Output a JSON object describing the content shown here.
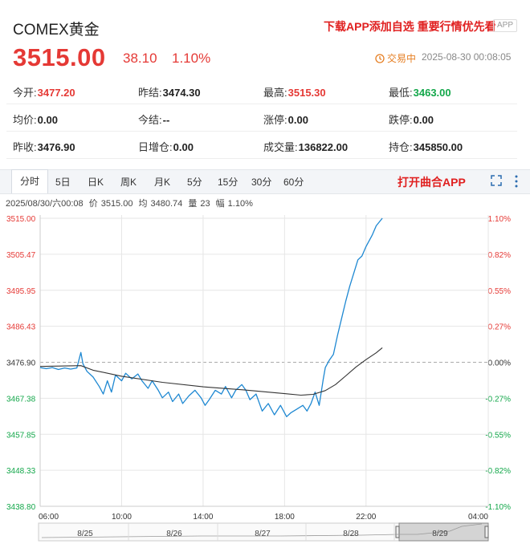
{
  "header": {
    "title": "COMEX黄金",
    "promo": "下载APP添加自选 重要行情优先看",
    "app_badge": "APP",
    "price": "3515.00",
    "change": "38.10",
    "change_pct": "1.10%",
    "status": "交易中",
    "timestamp": "2025-08-30 00:08:05"
  },
  "stats": {
    "open_label": "今开:",
    "open_value": "3477.20",
    "prev_settle_label": "昨结:",
    "prev_settle_value": "3474.30",
    "high_label": "最高:",
    "high_value": "3515.30",
    "low_label": "最低:",
    "low_value": "3463.00",
    "avg_label": "均价:",
    "avg_value": "0.00",
    "settle_label": "今结:",
    "settle_value": "--",
    "limit_up_label": "涨停:",
    "limit_up_value": "0.00",
    "limit_down_label": "跌停:",
    "limit_down_value": "0.00",
    "prev_close_label": "昨收:",
    "prev_close_value": "3476.90",
    "oi_change_label": "日增仓:",
    "oi_change_value": "0.00",
    "volume_label": "成交量:",
    "volume_value": "136822.00",
    "open_interest_label": "持仓:",
    "open_interest_value": "345850.00"
  },
  "tabs": [
    "分时",
    "5日",
    "日K",
    "周K",
    "月K",
    "5分",
    "15分",
    "30分",
    "60分"
  ],
  "open_app": "打开曲合APP",
  "info": {
    "datetime": "2025/08/30/六00:08",
    "price_label": "价",
    "price": "3515.00",
    "avg_label": "均",
    "avg": "3480.74",
    "vol_label": "量",
    "vol": "23",
    "amp_label": "幅",
    "amp": "1.10%"
  },
  "colors": {
    "up": "#e53935",
    "down": "#13a74a",
    "price_line": "#1e88d2",
    "avg_line": "#333333"
  },
  "chart_data": {
    "type": "line",
    "prev_close": 3476.9,
    "y_ticks": [
      "3515.00",
      "3505.47",
      "3495.95",
      "3486.43",
      "3476.90",
      "3467.38",
      "3457.85",
      "3448.33",
      "3438.80"
    ],
    "y_pct_ticks": [
      "1.10%",
      "0.82%",
      "0.55%",
      "0.27%",
      "0.00%",
      "-0.27%",
      "-0.55%",
      "-0.82%",
      "-1.10%"
    ],
    "x_ticks": [
      "06:00",
      "10:00",
      "14:00",
      "18:00",
      "22:00",
      "04:00"
    ],
    "x_hours": [
      0,
      4,
      8,
      12,
      16,
      22
    ],
    "x_hour_span": 22,
    "ylim": [
      3438.8,
      3515.0
    ],
    "series": [
      {
        "values": [
          [
            0,
            3475.5
          ],
          [
            0.3,
            3475.2
          ],
          [
            0.6,
            3475.5
          ],
          [
            0.9,
            3475.0
          ],
          [
            1.2,
            3475.4
          ],
          [
            1.5,
            3475.1
          ],
          [
            1.8,
            3475.4
          ],
          [
            2.0,
            3479.5
          ],
          [
            2.1,
            3476.5
          ],
          [
            2.3,
            3474.5
          ],
          [
            2.6,
            3473.0
          ],
          [
            2.9,
            3470.5
          ],
          [
            3.1,
            3468.5
          ],
          [
            3.3,
            3472.0
          ],
          [
            3.5,
            3469.0
          ],
          [
            3.7,
            3473.5
          ],
          [
            4.0,
            3472.0
          ],
          [
            4.2,
            3474.0
          ],
          [
            4.5,
            3472.5
          ],
          [
            4.8,
            3473.8
          ],
          [
            5.0,
            3472.0
          ],
          [
            5.3,
            3470.0
          ],
          [
            5.5,
            3472.0
          ],
          [
            5.8,
            3469.5
          ],
          [
            6.0,
            3467.5
          ],
          [
            6.3,
            3469.0
          ],
          [
            6.5,
            3466.5
          ],
          [
            6.8,
            3468.5
          ],
          [
            7.0,
            3466.0
          ],
          [
            7.3,
            3468.0
          ],
          [
            7.6,
            3469.5
          ],
          [
            7.9,
            3467.5
          ],
          [
            8.1,
            3465.5
          ],
          [
            8.3,
            3467.0
          ],
          [
            8.6,
            3469.5
          ],
          [
            8.9,
            3468.5
          ],
          [
            9.1,
            3470.5
          ],
          [
            9.4,
            3467.5
          ],
          [
            9.6,
            3469.5
          ],
          [
            9.9,
            3471.0
          ],
          [
            10.1,
            3469.5
          ],
          [
            10.3,
            3467.0
          ],
          [
            10.6,
            3468.5
          ],
          [
            10.9,
            3464.0
          ],
          [
            11.2,
            3466.0
          ],
          [
            11.5,
            3463.0
          ],
          [
            11.8,
            3465.5
          ],
          [
            12.1,
            3462.5
          ],
          [
            12.3,
            3463.5
          ],
          [
            12.6,
            3464.5
          ],
          [
            12.9,
            3465.5
          ],
          [
            13.1,
            3464.0
          ],
          [
            13.3,
            3466.0
          ],
          [
            13.5,
            3469.0
          ],
          [
            13.7,
            3465.5
          ],
          [
            13.9,
            3472.5
          ],
          [
            14.0,
            3475.5
          ],
          [
            14.2,
            3477.5
          ],
          [
            14.4,
            3479.0
          ],
          [
            14.6,
            3484.0
          ],
          [
            14.8,
            3488.5
          ],
          [
            15.0,
            3493.0
          ],
          [
            15.2,
            3497.0
          ],
          [
            15.4,
            3500.5
          ],
          [
            15.6,
            3504.0
          ],
          [
            15.8,
            3505.0
          ],
          [
            16.0,
            3507.5
          ],
          [
            16.3,
            3510.5
          ],
          [
            16.5,
            3513.0
          ],
          [
            16.8,
            3515.0
          ]
        ]
      },
      {
        "values": [
          [
            0,
            3475.8
          ],
          [
            2.0,
            3476.0
          ],
          [
            2.6,
            3474.8
          ],
          [
            4.0,
            3473.2
          ],
          [
            6.0,
            3471.6
          ],
          [
            8.0,
            3470.4
          ],
          [
            10.0,
            3469.6
          ],
          [
            12.0,
            3468.6
          ],
          [
            12.8,
            3468.2
          ],
          [
            13.4,
            3468.4
          ],
          [
            14.0,
            3469.4
          ],
          [
            14.5,
            3471.0
          ],
          [
            15.0,
            3473.3
          ],
          [
            15.5,
            3475.6
          ],
          [
            16.0,
            3477.6
          ],
          [
            16.5,
            3479.4
          ],
          [
            16.8,
            3480.74
          ]
        ]
      }
    ],
    "navigator_labels": [
      "8/25",
      "8/26",
      "8/27",
      "8/28",
      "8/29"
    ]
  }
}
